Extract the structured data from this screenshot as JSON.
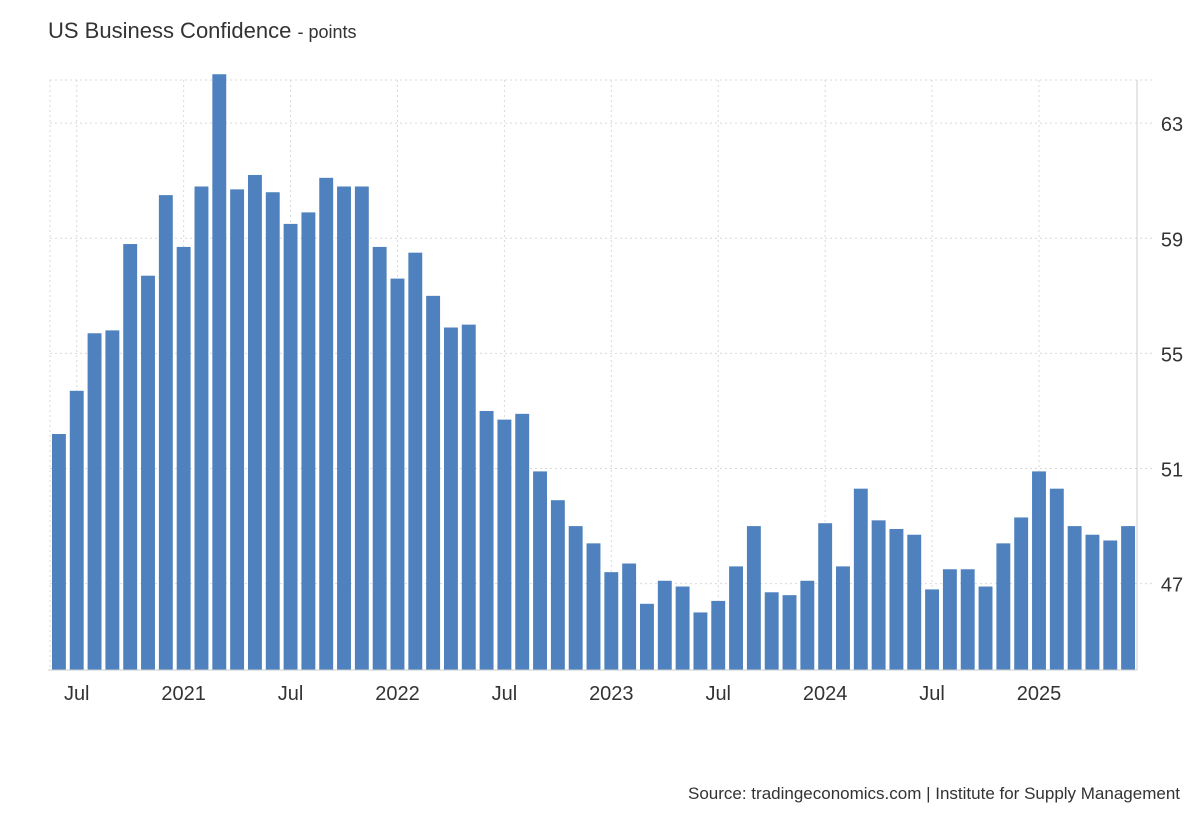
{
  "title": "US Business Confidence",
  "unit": "- points",
  "source": "Source: tradingeconomics.com | Institute for Supply Management",
  "colors": {
    "bar": "#4e81bd",
    "grid": "#d9d9d9",
    "axis": "#cccccc",
    "text": "#333333"
  },
  "chart_data": {
    "type": "bar",
    "title": "US Business Confidence",
    "ylabel": "points",
    "ylim": [
      44,
      64.5
    ],
    "y_ticks": [
      47,
      51,
      55,
      59,
      63
    ],
    "y_axis_position": "right",
    "grid": true,
    "x_tick_labels": [
      {
        "label": "Jul",
        "index": 1
      },
      {
        "label": "2021",
        "index": 7
      },
      {
        "label": "Jul",
        "index": 13
      },
      {
        "label": "2022",
        "index": 19
      },
      {
        "label": "Jul",
        "index": 25
      },
      {
        "label": "2023",
        "index": 31
      },
      {
        "label": "Jul",
        "index": 37
      },
      {
        "label": "2024",
        "index": 43
      },
      {
        "label": "Jul",
        "index": 49
      },
      {
        "label": "2025",
        "index": 55
      }
    ],
    "categories": [
      "Jun 2020",
      "Jul 2020",
      "Aug 2020",
      "Sep 2020",
      "Oct 2020",
      "Nov 2020",
      "Dec 2020",
      "Jan 2021",
      "Feb 2021",
      "Mar 2021",
      "Apr 2021",
      "May 2021",
      "Jun 2021",
      "Jul 2021",
      "Aug 2021",
      "Sep 2021",
      "Oct 2021",
      "Nov 2021",
      "Dec 2021",
      "Jan 2022",
      "Feb 2022",
      "Mar 2022",
      "Apr 2022",
      "May 2022",
      "Jun 2022",
      "Jul 2022",
      "Aug 2022",
      "Sep 2022",
      "Oct 2022",
      "Nov 2022",
      "Dec 2022",
      "Jan 2023",
      "Feb 2023",
      "Mar 2023",
      "Apr 2023",
      "May 2023",
      "Jun 2023",
      "Jul 2023",
      "Aug 2023",
      "Sep 2023",
      "Oct 2023",
      "Nov 2023",
      "Dec 2023",
      "Jan 2024",
      "Feb 2024",
      "Mar 2024",
      "Apr 2024",
      "May 2024",
      "Jun 2024",
      "Jul 2024",
      "Aug 2024",
      "Sep 2024",
      "Oct 2024",
      "Nov 2024",
      "Dec 2024",
      "Jan 2025",
      "Feb 2025",
      "Mar 2025",
      "Apr 2025",
      "May 2025",
      "Jun 2025"
    ],
    "values": [
      52.2,
      53.7,
      55.7,
      55.8,
      58.8,
      57.7,
      60.5,
      58.7,
      60.8,
      64.7,
      60.7,
      61.2,
      60.6,
      59.5,
      59.9,
      61.1,
      60.8,
      60.8,
      58.7,
      57.6,
      58.5,
      57.0,
      55.9,
      56.0,
      53.0,
      52.7,
      52.9,
      50.9,
      49.9,
      49.0,
      48.4,
      47.4,
      47.7,
      46.3,
      47.1,
      46.9,
      46.0,
      46.4,
      47.6,
      49.0,
      46.7,
      46.6,
      47.1,
      49.1,
      47.6,
      50.3,
      49.2,
      48.9,
      48.7,
      46.8,
      47.5,
      47.5,
      46.9,
      48.4,
      49.3,
      50.9,
      50.3,
      49.0,
      48.7,
      48.5,
      49.0
    ]
  }
}
